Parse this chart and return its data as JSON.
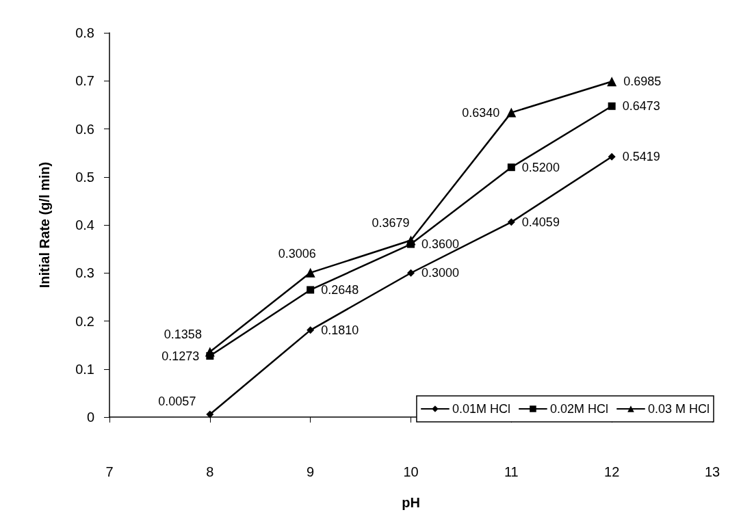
{
  "chart_data": {
    "type": "line",
    "xlabel": "pH",
    "ylabel": "Initial Rate (g/l min)",
    "x": [
      8,
      9,
      10,
      11,
      12
    ],
    "xlim": [
      7,
      13
    ],
    "xticks": [
      7,
      8,
      9,
      10,
      11,
      12,
      13
    ],
    "ylim": [
      0,
      0.8
    ],
    "yticks": [
      0,
      0.1,
      0.2,
      0.3,
      0.4,
      0.5,
      0.6,
      0.7,
      0.8
    ],
    "grid": false,
    "legend": "bottom right",
    "line_style": "solid",
    "series": [
      {
        "name": "0.01M HCl",
        "color": "#000000",
        "marker": "diamond",
        "values": [
          0.0057,
          0.181,
          0.3,
          0.4059,
          0.5419
        ],
        "value_labels": [
          "0.0057",
          "0.1810",
          "0.3000",
          "0.4059",
          "0.5419"
        ]
      },
      {
        "name": "0.02M HCl",
        "color": "#000000",
        "marker": "square",
        "values": [
          0.1273,
          0.2648,
          0.36,
          0.52,
          0.6473
        ],
        "value_labels": [
          "0.1273",
          "0.2648",
          "0.3600",
          "0.5200",
          "0.6473"
        ]
      },
      {
        "name": "0.03 M HCl",
        "color": "#000000",
        "marker": "triangle",
        "values": [
          0.1358,
          0.3006,
          0.3679,
          0.634,
          0.6985
        ],
        "value_labels": [
          "0.1358",
          "0.3006",
          "0.3679",
          "0.6340",
          "0.6985"
        ]
      }
    ]
  }
}
